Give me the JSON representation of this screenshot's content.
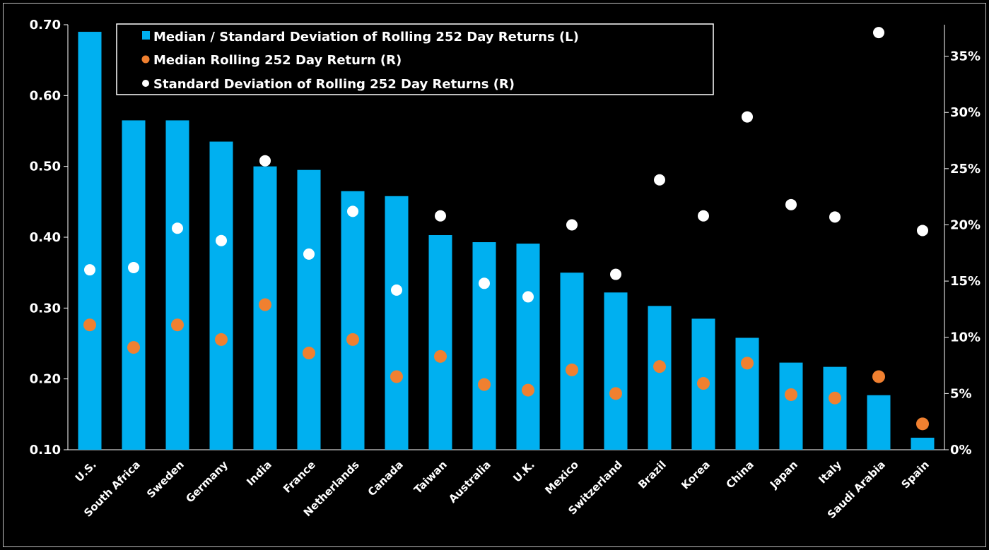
{
  "chart_data": {
    "type": "bar",
    "categories": [
      "U.S.",
      "South Africa",
      "Sweden",
      "Germany",
      "India",
      "France",
      "Netherlands",
      "Canada",
      "Taiwan",
      "Australia",
      "U.K.",
      "Mexico",
      "Switzerland",
      "Brazil",
      "Korea",
      "China",
      "Japan",
      "Italy",
      "Saudi Arabia",
      "Spain"
    ],
    "series": [
      {
        "name": "Median / Standard Deviation of Rolling 252 Day Returns (L)",
        "kind": "bar",
        "axis": "left",
        "color": "#00b0f0",
        "values": [
          0.69,
          0.565,
          0.565,
          0.535,
          0.5,
          0.495,
          0.465,
          0.458,
          0.403,
          0.393,
          0.391,
          0.35,
          0.322,
          0.303,
          0.285,
          0.258,
          0.223,
          0.217,
          0.177,
          0.117
        ]
      },
      {
        "name": "Median Rolling 252 Day Return (R)",
        "kind": "scatter",
        "axis": "right",
        "color": "#f08030",
        "values": [
          11.1,
          9.1,
          11.1,
          9.8,
          12.9,
          8.6,
          9.8,
          6.5,
          8.3,
          5.8,
          5.3,
          7.1,
          5.0,
          7.4,
          5.9,
          7.7,
          4.9,
          4.6,
          6.5,
          2.3
        ]
      },
      {
        "name": "Standard Deviation of Rolling 252 Day Returns (R)",
        "kind": "scatter",
        "axis": "right",
        "color": "#ffffff",
        "values": [
          16.0,
          16.2,
          19.7,
          18.6,
          25.7,
          17.4,
          21.2,
          14.2,
          20.8,
          14.8,
          13.6,
          20.0,
          15.6,
          24.0,
          20.8,
          29.6,
          21.8,
          20.7,
          37.1,
          19.5
        ]
      }
    ],
    "y_left": {
      "ticks": [
        "0.10",
        "0.20",
        "0.30",
        "0.40",
        "0.50",
        "0.60",
        "0.70"
      ],
      "ylim": [
        0.1,
        0.7
      ]
    },
    "y_right": {
      "ticks": [
        "0%",
        "5%",
        "10%",
        "15%",
        "20%",
        "25%",
        "30%",
        "35%"
      ],
      "ylim": [
        0,
        37.8
      ]
    },
    "legend": {
      "placement": "top-left",
      "entries": [
        "Median / Standard Deviation of Rolling 252 Day Returns (L)",
        "Median Rolling 252 Day Return (R)",
        "Standard Deviation of Rolling 252 Day Returns (R)"
      ]
    },
    "grid": false,
    "background": "#000000"
  }
}
